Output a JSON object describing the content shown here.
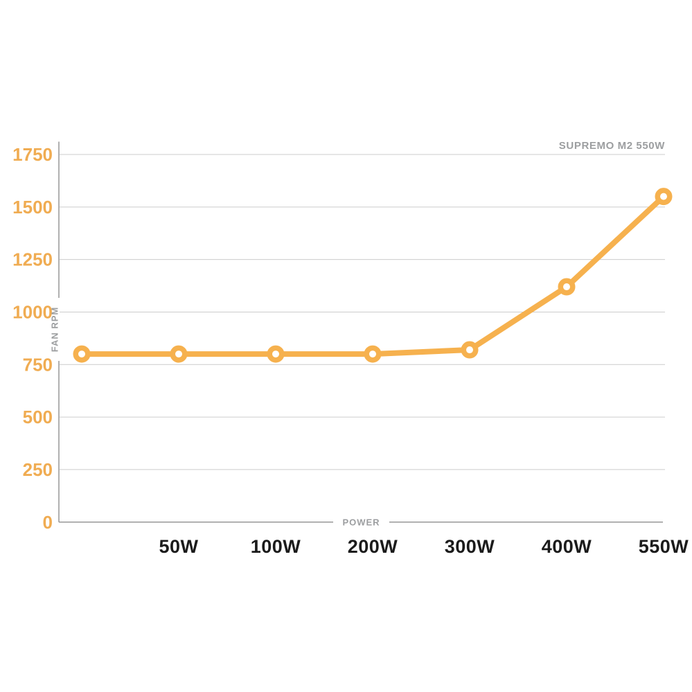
{
  "page": {
    "background": "#FFFFFF"
  },
  "chart_data": {
    "type": "line",
    "title": "SUPREMO M2 550W",
    "xlabel": "POWER",
    "ylabel": "FAN RPM",
    "categories": [
      "",
      "50W",
      "100W",
      "200W",
      "300W",
      "400W",
      "550W"
    ],
    "series": [
      {
        "name": "SUPREMO M2 550W",
        "values": [
          800,
          800,
          800,
          800,
          820,
          1120,
          1550
        ]
      }
    ],
    "yticks": [
      0,
      250,
      500,
      750,
      1000,
      1250,
      1500,
      1750
    ],
    "ylim": [
      0,
      1750
    ],
    "grid": true,
    "legend": "none",
    "colors": {
      "line": "#F6B14E",
      "marker_fill": "#FFFFFF",
      "y_tick_label": "#F0AC52",
      "x_tick_label": "#1B1B1B",
      "grid_line": "#CCCCCC",
      "axis_line": "#8F8F8F",
      "text_gray": "#9C9EA0"
    }
  }
}
